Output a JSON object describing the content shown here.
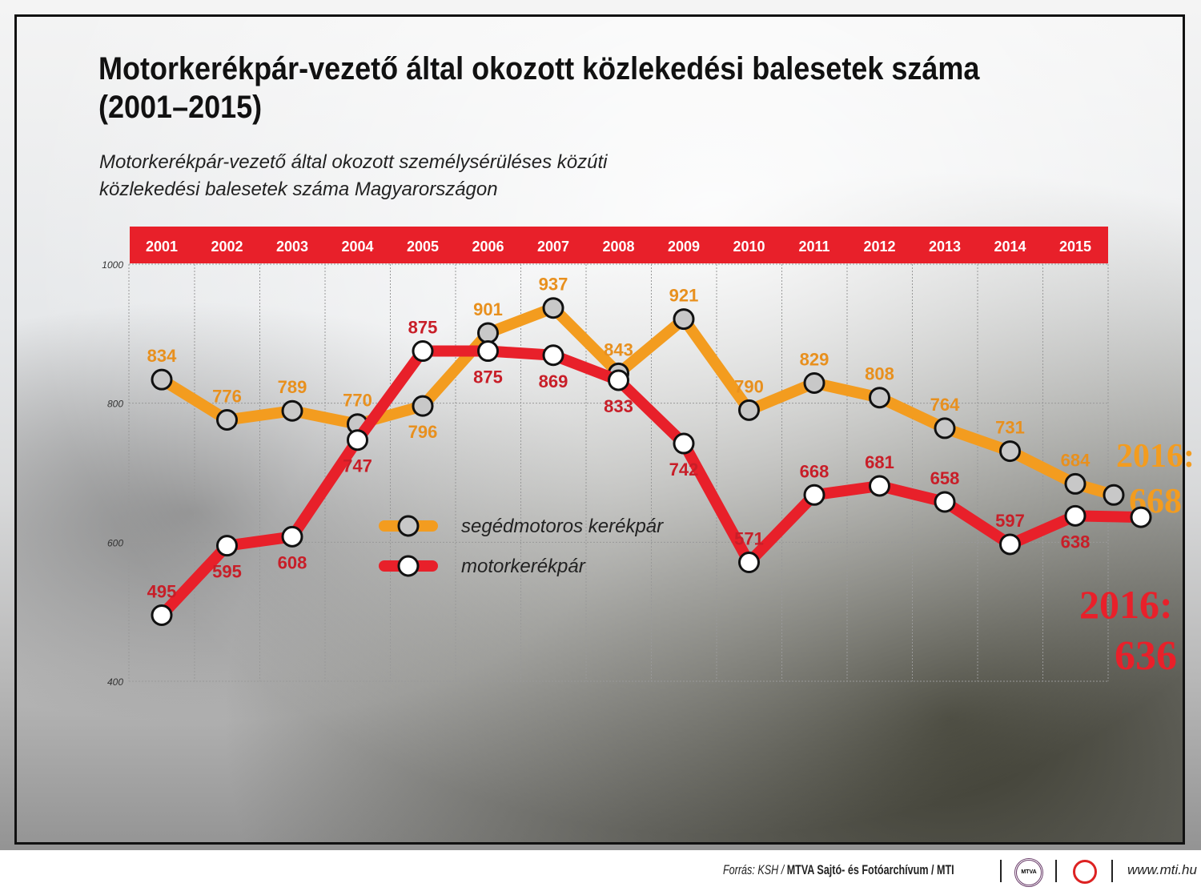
{
  "title_line1": "Motorkerékpár-vezető által okozott közlekedési balesetek száma",
  "title_line2": "(2001–2015)",
  "subtitle_line1": "Motorkerékpár-vezető által okozott személysérüléses közúti",
  "subtitle_line2": "közlekedési balesetek száma Magyarországon",
  "chart_data": {
    "type": "line",
    "x": [
      "2001",
      "2002",
      "2003",
      "2004",
      "2005",
      "2006",
      "2007",
      "2008",
      "2009",
      "2010",
      "2011",
      "2012",
      "2013",
      "2014",
      "2015"
    ],
    "yticks": [
      "400",
      "600",
      "800",
      "1000"
    ],
    "ylim": [
      400,
      1000
    ],
    "grid": true,
    "legend_position": "center-left",
    "series": [
      {
        "name": "segédmotoros kerékpár",
        "color": "#f39c1f",
        "values": [
          834,
          776,
          789,
          770,
          796,
          901,
          937,
          843,
          921,
          790,
          829,
          808,
          764,
          731,
          684
        ]
      },
      {
        "name": "motorkerékpár",
        "color": "#e8202a",
        "values": [
          495,
          595,
          608,
          747,
          875,
          875,
          869,
          833,
          742,
          571,
          668,
          681,
          658,
          597,
          638
        ]
      }
    ],
    "annotations": [
      {
        "series": "segédmotoros kerékpár",
        "x": "2016",
        "value": 668,
        "label_line1": "2016:",
        "label_line2": "668",
        "color": "#f39c1f"
      },
      {
        "series": "motorkerékpár",
        "x": "2016",
        "value": 636,
        "label_line1": "2016:",
        "label_line2": "636",
        "color": "#e8202a"
      }
    ]
  },
  "footer": {
    "source_prefix": "Forrás: KSH / ",
    "source_bold": "MTVA Sajtó- és Fotóarchívum / MTI",
    "logo_text": "MTVA",
    "url": "www.mti.hu"
  }
}
